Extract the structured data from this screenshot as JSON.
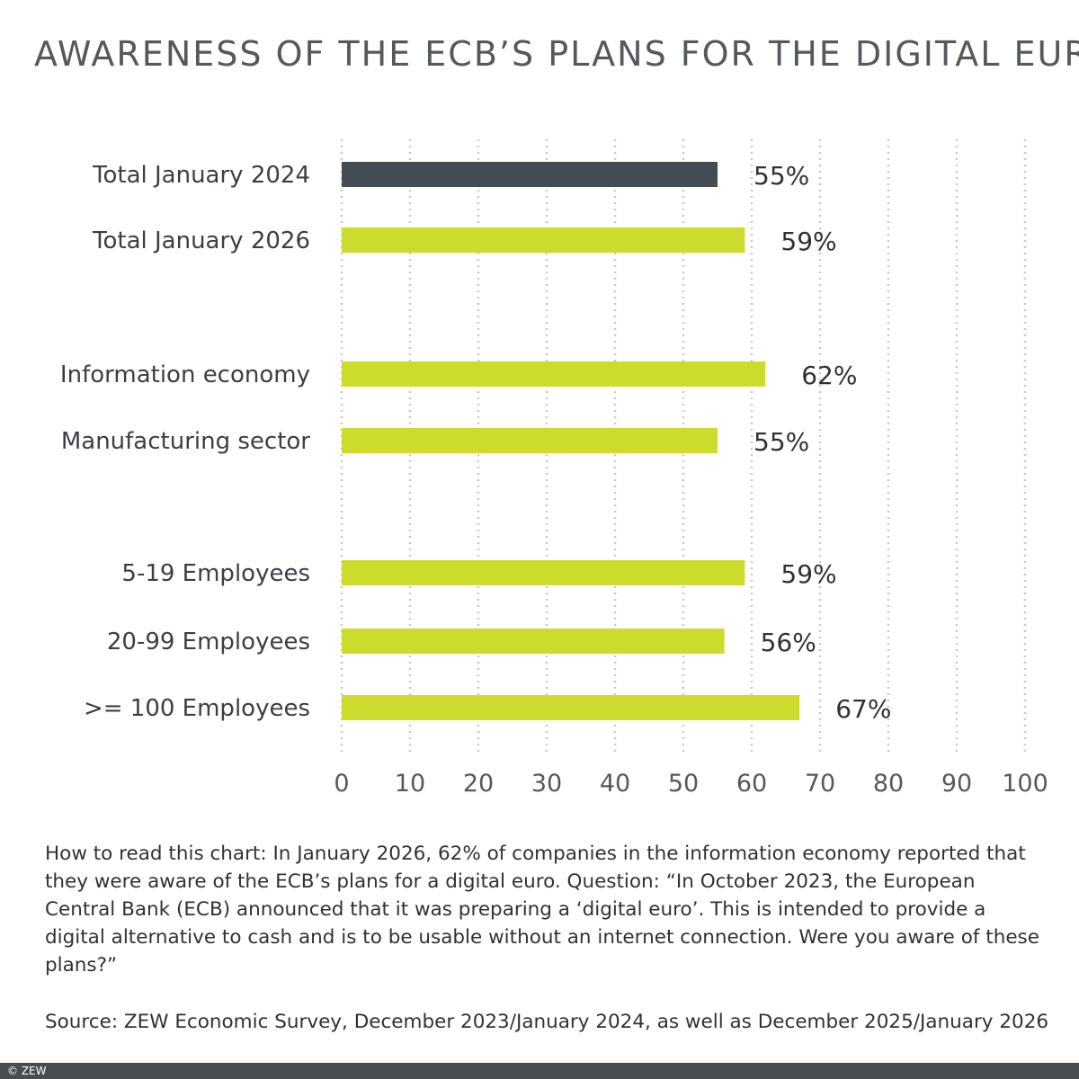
{
  "chart_data": {
    "type": "bar",
    "orientation": "horizontal",
    "title": "AWARENESS OF THE ECB’S PLANS FOR THE DIGITAL EURO",
    "categories": [
      "Total January 2024",
      "Total January 2026",
      "Information economy",
      "Manufacturing sector",
      "5-19 Employees",
      "20-99 Employees",
      ">= 100 Employees"
    ],
    "values": [
      55,
      59,
      62,
      55,
      59,
      56,
      67
    ],
    "value_labels": [
      "55%",
      "59%",
      "62%",
      "55%",
      "59%",
      "56%",
      "67%"
    ],
    "bar_colors": [
      "#434b53",
      "#cddc2c",
      "#cddc2c",
      "#cddc2c",
      "#cddc2c",
      "#cddc2c",
      "#cddc2c"
    ],
    "xlim": [
      0,
      100
    ],
    "xticks": [
      0,
      10,
      20,
      30,
      40,
      50,
      60,
      70,
      80,
      90,
      100
    ],
    "grid": "vertical dotted",
    "xlabel": "",
    "ylabel": ""
  },
  "note": "How to read this chart: In January 2026, 62% of companies in the information economy reported that they were aware of the ECB’s plans for a digital euro. Question: “In October 2023, the European Central Bank (ECB) announced that it was preparing a ‘digital euro’. This is intended to provide a digital alternative to cash and is to be usable without an internet connection. Were you aware of these plans?”",
  "source": "Source: ZEW Economic Survey, December 2023/January 2024, as well as December 2025/January 2026",
  "copyright": "© ZEW"
}
